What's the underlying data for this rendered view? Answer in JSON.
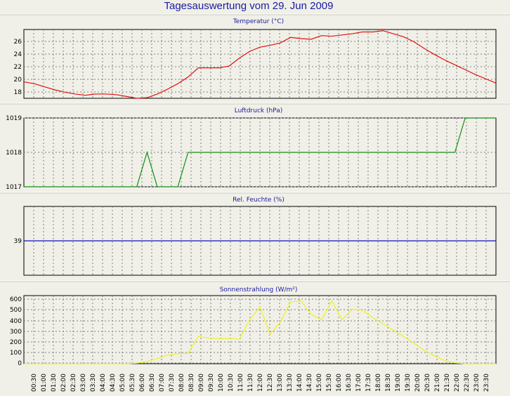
{
  "title": "Tagesauswertung vom 29. Jun 2009",
  "colors": {
    "background": "#f0f0e8",
    "title": "#1a1aa0",
    "temperature": "#e01010",
    "pressure": "#109010",
    "humidity": "#1010c0",
    "solar": "#f0f020"
  },
  "time_labels": [
    "00:30",
    "01:00",
    "01:30",
    "02:00",
    "02:30",
    "03:00",
    "03:30",
    "04:00",
    "04:30",
    "05:00",
    "05:30",
    "06:00",
    "06:30",
    "07:00",
    "07:30",
    "08:00",
    "08:30",
    "09:00",
    "09:30",
    "10:00",
    "10:30",
    "11:00",
    "11:30",
    "12:00",
    "12:30",
    "13:00",
    "13:30",
    "14:00",
    "14:30",
    "15:00",
    "15:30",
    "16:00",
    "16:30",
    "17:00",
    "17:30",
    "18:00",
    "18:30",
    "19:00",
    "19:30",
    "20:00",
    "20:30",
    "21:00",
    "21:30",
    "22:00",
    "22:30",
    "23:00",
    "23:30"
  ],
  "chart_data": [
    {
      "type": "line",
      "title": "Temperatur (°C)",
      "yticks": [
        "26",
        "24",
        "22",
        "20",
        "18"
      ],
      "ylim": [
        16.9,
        28.2
      ],
      "x": [
        0,
        0.5,
        1,
        1.5,
        2,
        2.5,
        3,
        3.5,
        4,
        4.5,
        5,
        5.5,
        6,
        6.5,
        7,
        7.5,
        8,
        8.5,
        9,
        9.5,
        10,
        10.5,
        11,
        11.5,
        12,
        12.5,
        13,
        13.5,
        14,
        14.5,
        15,
        15.5,
        16,
        16.5,
        17,
        17.5,
        18,
        18.5,
        19,
        19.5,
        20,
        20.5,
        21,
        21.5,
        22,
        22.5,
        23
      ],
      "series": [
        {
          "values": [
            19.6,
            19.3,
            18.8,
            18.3,
            17.9,
            17.6,
            17.4,
            17.6,
            17.6,
            17.5,
            17.2,
            16.9,
            17.0,
            17.6,
            18.4,
            19.3,
            20.4,
            21.9,
            21.9,
            21.9,
            22.2,
            23.5,
            24.6,
            25.3,
            25.6,
            26.0,
            26.9,
            26.7,
            26.6,
            27.2,
            27.1,
            27.3,
            27.5,
            27.8,
            27.8,
            28.0,
            27.5,
            27.0,
            26.2,
            25.1,
            24.1,
            23.2,
            22.4,
            21.6,
            20.8,
            20.1,
            19.4
          ]
        }
      ]
    },
    {
      "type": "line",
      "title": "Luftdruck (hPa)",
      "yticks": [
        "1019",
        "1018",
        "1017"
      ],
      "ylim": [
        1017,
        1019
      ],
      "x": [
        0,
        0.5,
        1,
        1.5,
        2,
        2.5,
        3,
        3.5,
        4,
        4.5,
        5,
        5.5,
        6,
        6.5,
        7,
        7.5,
        8,
        8.5,
        9,
        9.5,
        10,
        10.5,
        11,
        11.5,
        12,
        12.5,
        13,
        13.5,
        14,
        14.5,
        15,
        15.5,
        16,
        16.5,
        17,
        17.5,
        18,
        18.5,
        19,
        19.5,
        20,
        20.5,
        21,
        21.5,
        22,
        22.5,
        23
      ],
      "series": [
        {
          "values": [
            1017,
            1017,
            1017,
            1017,
            1017,
            1017,
            1017,
            1017,
            1017,
            1017,
            1017,
            1017,
            1018,
            1017,
            1017,
            1017,
            1018,
            1018,
            1018,
            1018,
            1018,
            1018,
            1018,
            1018,
            1018,
            1018,
            1018,
            1018,
            1018,
            1018,
            1018,
            1018,
            1018,
            1018,
            1018,
            1018,
            1018,
            1018,
            1018,
            1018,
            1018,
            1018,
            1018,
            1019,
            1019,
            1019,
            1019
          ]
        }
      ]
    },
    {
      "type": "line",
      "title": "Rel. Feuchte (%)",
      "yticks": [
        "39"
      ],
      "ylim": [
        38,
        40
      ],
      "x": [
        0,
        23.5
      ],
      "series": [
        {
          "values": [
            39,
            39
          ]
        }
      ]
    },
    {
      "type": "line",
      "title": "Sonnenstrahlung (W/m²)",
      "yticks": [
        "600",
        "500",
        "400",
        "300",
        "200",
        "100",
        "0"
      ],
      "ylim": [
        0,
        650
      ],
      "x": [
        0,
        0.5,
        1,
        1.5,
        2,
        2.5,
        3,
        3.5,
        4,
        4.5,
        5,
        5.5,
        6,
        6.5,
        7,
        7.5,
        8,
        8.5,
        9,
        9.5,
        10,
        10.5,
        11,
        11.5,
        12,
        12.5,
        13,
        13.5,
        14,
        14.5,
        15,
        15.5,
        16,
        16.5,
        17,
        17.5,
        18,
        18.5,
        19,
        19.5,
        20,
        20.5,
        21,
        21.5,
        22,
        22.5,
        23
      ],
      "series": [
        {
          "values": [
            0,
            0,
            0,
            0,
            0,
            0,
            0,
            0,
            0,
            0,
            0,
            5,
            20,
            50,
            80,
            95,
            100,
            260,
            245,
            240,
            240,
            235,
            420,
            540,
            280,
            400,
            590,
            600,
            470,
            420,
            600,
            420,
            520,
            510,
            440,
            380,
            320,
            260,
            195,
            130,
            75,
            30,
            8,
            0,
            0,
            0,
            0
          ]
        }
      ]
    }
  ]
}
